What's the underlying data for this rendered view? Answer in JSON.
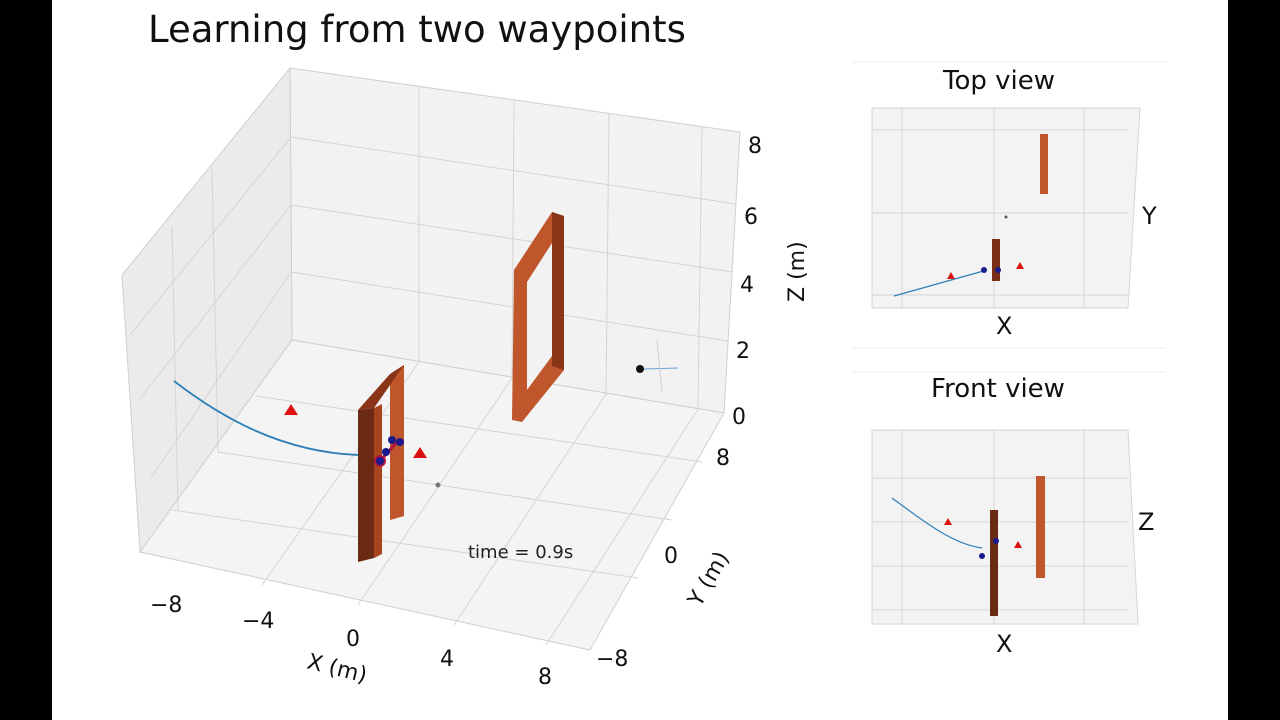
{
  "title": "Learning from two waypoints",
  "main_plot": {
    "time_label": "time = 0.9s",
    "xlabel": "X (m)",
    "ylabel": "Y (m)",
    "zlabel": "Z (m)",
    "x_ticks": [
      "−8",
      "−4",
      "0",
      "4",
      "8"
    ],
    "y_ticks": [
      "8",
      "0",
      "−8"
    ],
    "z_ticks": [
      "0",
      "2",
      "4",
      "6",
      "8"
    ]
  },
  "top_view": {
    "title": "Top view",
    "xlabel": "X",
    "ylabel": "Y"
  },
  "front_view": {
    "title": "Front view",
    "xlabel": "X",
    "ylabel": "Z"
  },
  "chart_data": [
    {
      "type": "scatter",
      "title": "Learning from two waypoints",
      "projection": "3d",
      "xlabel": "X (m)",
      "ylabel": "Y (m)",
      "zlabel": "Z (m)",
      "xlim": [
        -8,
        8
      ],
      "ylim": [
        -8,
        8
      ],
      "zlim": [
        0,
        8
      ],
      "x_ticks": [
        -8,
        -4,
        0,
        4,
        8
      ],
      "y_ticks": [
        -8,
        0,
        8
      ],
      "z_ticks": [
        0,
        2,
        4,
        6,
        8
      ],
      "grid": true,
      "annotation": "time = 0.9s",
      "colors": {
        "trajectory": "#2e7fb8",
        "waypoint": "#dd1111",
        "gate": "#b5441c",
        "drone": "#1a1a8c"
      }
    },
    {
      "type": "scatter",
      "title": "Top view",
      "xlabel": "X",
      "ylabel": "Y",
      "grid": true
    },
    {
      "type": "scatter",
      "title": "Front view",
      "xlabel": "X",
      "ylabel": "Z",
      "grid": true
    }
  ]
}
